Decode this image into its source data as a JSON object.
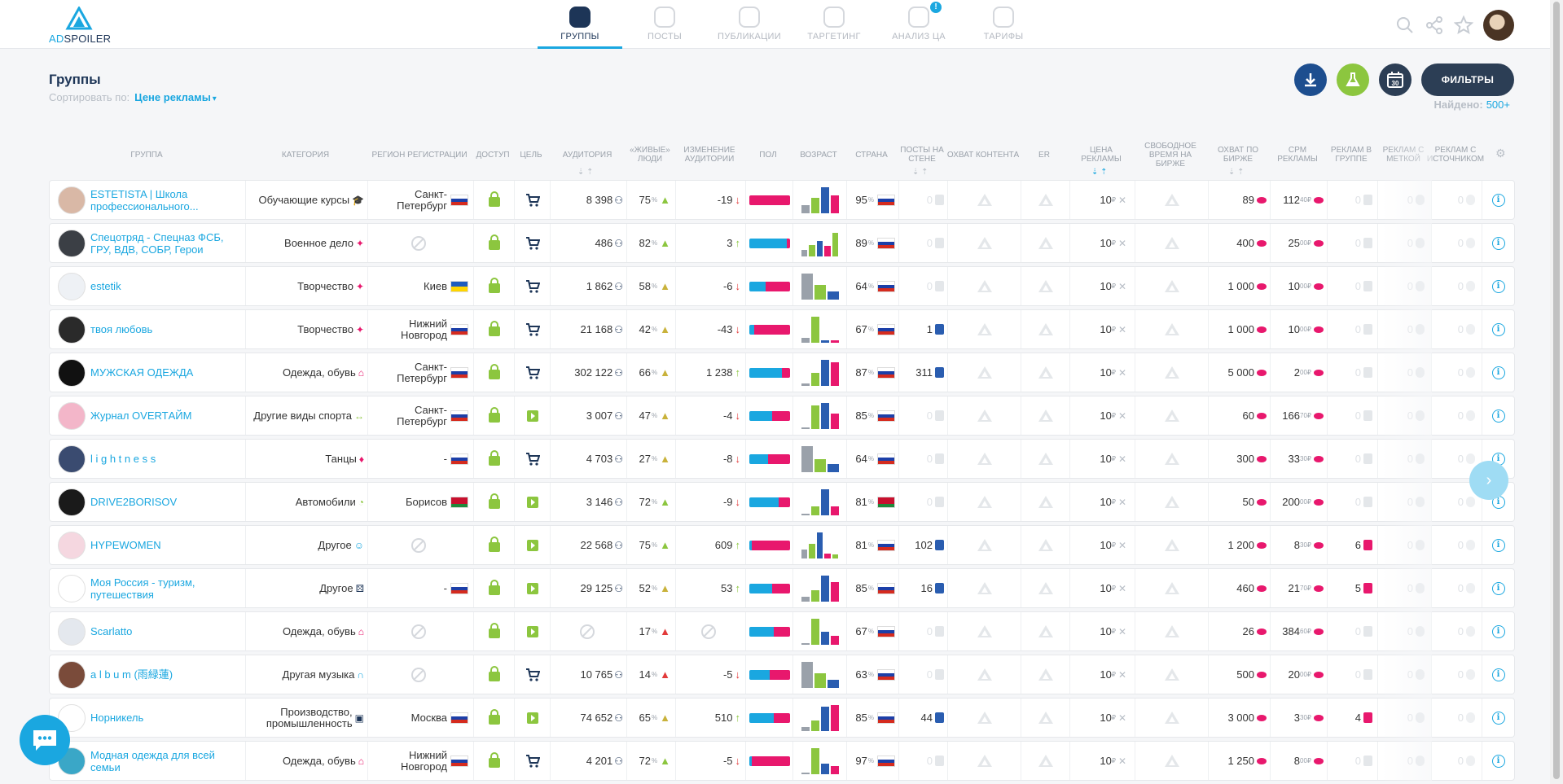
{
  "logo": {
    "ad": "AD",
    "spoiler": "SPOILER"
  },
  "nav": [
    {
      "label": "ГРУППЫ",
      "active": true,
      "icon": "groups-icon"
    },
    {
      "label": "ПОСТЫ",
      "active": false,
      "icon": "posts-icon"
    },
    {
      "label": "ПУБЛИКАЦИИ",
      "active": false,
      "icon": "share-icon"
    },
    {
      "label": "ТАРГЕТИНГ",
      "active": false,
      "icon": "target-icon"
    },
    {
      "label": "АНАЛИЗ ЦА",
      "active": false,
      "icon": "magic-wand-icon",
      "badge": "!"
    },
    {
      "label": "ТАРИФЫ",
      "active": false,
      "icon": "price-tag-icon"
    }
  ],
  "page": {
    "title": "Группы",
    "sort_label": "Сортировать по:",
    "sort_value": "Цене рекламы",
    "filters_label": "ФИЛЬТРЫ",
    "calendar_label": "30",
    "found_label": "Найдено:",
    "found_value": "500+"
  },
  "columns": {
    "group": "ГРУППА",
    "category": "КАТЕГОРИЯ",
    "region": "РЕГИОН РЕГИСТРАЦИИ",
    "access": "ДОСТУП",
    "goal": "ЦЕЛЬ",
    "audience": "АУДИТОРИЯ",
    "live": "«ЖИВЫЕ» ЛЮДИ",
    "change": "ИЗМЕНЕНИЕ АУДИТОРИИ",
    "sex": "ПОЛ",
    "age": "ВОЗРАСТ",
    "country": "СТРАНА",
    "posts": "ПОСТЫ НА СТЕНЕ",
    "reach": "ОХВАТ КОНТЕНТА",
    "er": "ER",
    "price": "ЦЕНА РЕКЛАМЫ",
    "free": "СВОБОДНОЕ ВРЕМЯ НА БИРЖЕ",
    "exch": "ОХВАТ ПО БИРЖЕ",
    "cpm": "CPM РЕКЛАМЫ",
    "ads_group": "РЕКЛАМ В ГРУППЕ",
    "ads_mark": "РЕКЛАМ С МЕТКОЙ",
    "ads_src": "РЕКЛАМ С ИСТОЧНИКОМ"
  },
  "colors": {
    "accent": "#1aa7e0",
    "navy": "#1d3557",
    "green": "#8cc63f",
    "pink": "#e8186d",
    "red": "#e23b3b"
  },
  "rows": [
    {
      "name": "ESTETISTA | Школа профессионального...",
      "cat": "Обучающие курсы",
      "cat_icon": "graduation-cap-icon",
      "region": "Санкт-Петербург",
      "flag": "ru",
      "goal": "cart",
      "aud": "8 398",
      "live": "75",
      "live_col": "#8cc63f",
      "chg": "-19",
      "dir": "down",
      "male": 0,
      "age": [
        0.3,
        0.6,
        1.0,
        0.7
      ],
      "cty": "95",
      "cflag": "ru",
      "posts": "0",
      "price": "10",
      "exch": "89",
      "cpm": "112",
      "cpm_dec": "40",
      "rg": "0",
      "rm": "0",
      "rs": "0",
      "av": "#d9b8a6"
    },
    {
      "name": "Спецотряд - Спецназ ФСБ, ГРУ, ВДВ, СОБР, Герои",
      "cat": "Военное дело",
      "cat_icon": "puzzle-icon",
      "region": "",
      "flag": "",
      "goal": "cart",
      "aud": "486",
      "live": "82",
      "live_col": "#8cc63f",
      "chg": "3",
      "dir": "up",
      "male": 0.92,
      "age": [
        0.25,
        0.45,
        0.6,
        0.4,
        0.9
      ],
      "cty": "89",
      "cflag": "ru",
      "posts": "0",
      "price": "10",
      "exch": "400",
      "cpm": "25",
      "cpm_dec": "00",
      "rg": "0",
      "rm": "0",
      "rs": "0",
      "av": "#3b3f45"
    },
    {
      "name": "estetik",
      "cat": "Творчество",
      "cat_icon": "puzzle-icon",
      "region": "Киев",
      "flag": "ua",
      "goal": "cart",
      "aud": "1 862",
      "live": "58",
      "live_col": "#c9b23b",
      "chg": "-6",
      "dir": "down",
      "male": 0.4,
      "age": [
        1.0,
        0.55,
        0.3
      ],
      "cty": "64",
      "cflag": "ru",
      "posts": "0",
      "price": "10",
      "exch": "1 000",
      "cpm": "10",
      "cpm_dec": "00",
      "rg": "0",
      "rm": "0",
      "rs": "0",
      "av": "#eef1f5"
    },
    {
      "name": "твоя любовь",
      "cat": "Творчество",
      "cat_icon": "puzzle-icon",
      "region": "Нижний Новгород",
      "flag": "ru",
      "goal": "cart",
      "aud": "21 168",
      "live": "42",
      "live_col": "#c9b23b",
      "chg": "-43",
      "dir": "down",
      "male": 0.12,
      "age": [
        0.2,
        1.0,
        0.08,
        0.08
      ],
      "cty": "67",
      "cflag": "ru",
      "posts": "1",
      "price": "10",
      "exch": "1 000",
      "cpm": "10",
      "cpm_dec": "00",
      "rg": "0",
      "rm": "0",
      "rs": "0",
      "av": "#2a2a2a"
    },
    {
      "name": "МУЖСКАЯ ОДЕЖДА",
      "cat": "Одежда, обувь",
      "cat_icon": "basket-icon",
      "region": "Санкт-Петербург",
      "flag": "ru",
      "goal": "cart",
      "aud": "302 122",
      "live": "66",
      "live_col": "#c9b23b",
      "chg": "1 238",
      "dir": "up",
      "male": 0.8,
      "age": [
        0.1,
        0.5,
        1.0,
        0.9
      ],
      "cty": "87",
      "cflag": "ru",
      "posts": "311",
      "price": "10",
      "exch": "5 000",
      "cpm": "2",
      "cpm_dec": "00",
      "rg": "0",
      "rm": "0",
      "rs": "0",
      "av": "#111111"
    },
    {
      "name": "Журнал OVERTАЙМ",
      "cat": "Другие виды спорта",
      "cat_icon": "arrows-icon",
      "region": "Санкт-Петербург",
      "flag": "ru",
      "goal": "video",
      "aud": "3 007",
      "live": "47",
      "live_col": "#c9b23b",
      "chg": "-4",
      "dir": "down",
      "male": 0.55,
      "age": [
        0.05,
        0.9,
        1.0,
        0.6
      ],
      "cty": "85",
      "cflag": "ru",
      "posts": "0",
      "price": "10",
      "exch": "60",
      "cpm": "166",
      "cpm_dec": "70",
      "rg": "0",
      "rm": "0",
      "rs": "0",
      "av": "#f3b6c9"
    },
    {
      "name": "l i g h t n e s s",
      "cat": "Танцы",
      "cat_icon": "dress-icon",
      "region": "-",
      "flag": "ru",
      "goal": "cart",
      "aud": "4 703",
      "live": "27",
      "live_col": "#c9b23b",
      "chg": "-8",
      "dir": "down",
      "male": 0.45,
      "age": [
        1.0,
        0.5,
        0.3
      ],
      "cty": "64",
      "cflag": "ru",
      "posts": "0",
      "price": "10",
      "exch": "300",
      "cpm": "33",
      "cpm_dec": "30",
      "rg": "0",
      "rm": "0",
      "rs": "0",
      "av": "#3a4b70"
    },
    {
      "name": "DRIVE2BORISOV",
      "cat": "Автомобили",
      "cat_icon": "speedometer-icon",
      "region": "Борисов",
      "flag": "by",
      "goal": "video",
      "aud": "3 146",
      "live": "72",
      "live_col": "#8cc63f",
      "chg": "-9",
      "dir": "down",
      "male": 0.72,
      "age": [
        0.05,
        0.35,
        1.0,
        0.35
      ],
      "cty": "81",
      "cflag": "by",
      "posts": "0",
      "price": "10",
      "exch": "50",
      "cpm": "200",
      "cpm_dec": "00",
      "rg": "0",
      "rm": "0",
      "rs": "0",
      "av": "#1a1a1a"
    },
    {
      "name": "HYPEWOMEN",
      "cat": "Другое",
      "cat_icon": "masks-icon",
      "region": "",
      "flag": "",
      "goal": "video",
      "aud": "22 568",
      "live": "75",
      "live_col": "#8cc63f",
      "chg": "609",
      "dir": "up",
      "male": 0.05,
      "age": [
        0.35,
        0.55,
        1.0,
        0.2,
        0.15
      ],
      "cty": "81",
      "cflag": "ru",
      "posts": "102",
      "price": "10",
      "exch": "1 200",
      "cpm": "8",
      "cpm_dec": "30",
      "rg": "6",
      "rm": "0",
      "rs": "0",
      "av": "#f5d7e0"
    },
    {
      "name": "Моя Россия - туризм, путешествия",
      "cat": "Другое",
      "cat_icon": "dice-icon",
      "region": "-",
      "flag": "ru",
      "goal": "video",
      "aud": "29 125",
      "live": "52",
      "live_col": "#c9b23b",
      "chg": "53",
      "dir": "up",
      "male": 0.55,
      "age": [
        0.2,
        0.45,
        1.0,
        0.75
      ],
      "cty": "85",
      "cflag": "ru",
      "posts": "16",
      "price": "10",
      "exch": "460",
      "cpm": "21",
      "cpm_dec": "70",
      "rg": "5",
      "rm": "0",
      "rs": "0",
      "av": "#ffffff"
    },
    {
      "name": "Scarlatto",
      "cat": "Одежда, обувь",
      "cat_icon": "basket-icon",
      "region": "",
      "flag": "",
      "goal": "video",
      "aud": "",
      "live": "17",
      "live_col": "#e23b3b",
      "chg": "",
      "dir": "",
      "male": 0.6,
      "age": [
        0.05,
        1.0,
        0.5,
        0.35
      ],
      "cty": "67",
      "cflag": "ru",
      "posts": "0",
      "price": "10",
      "exch": "26",
      "cpm": "384",
      "cpm_dec": "60",
      "rg": "0",
      "rm": "0",
      "rs": "0",
      "av": "#e4e8ee"
    },
    {
      "name": "a l b u m (雨緑蓮)",
      "cat": "Другая музыка",
      "cat_icon": "headphones-icon",
      "region": "",
      "flag": "",
      "goal": "cart",
      "aud": "10 765",
      "live": "14",
      "live_col": "#e23b3b",
      "chg": "-5",
      "dir": "down",
      "male": 0.5,
      "age": [
        1.0,
        0.55,
        0.3
      ],
      "cty": "63",
      "cflag": "ru",
      "posts": "0",
      "price": "10",
      "exch": "500",
      "cpm": "20",
      "cpm_dec": "00",
      "rg": "0",
      "rm": "0",
      "rs": "0",
      "av": "#7a4b3a"
    },
    {
      "name": "Норникель",
      "cat": "Производство, промышленность",
      "cat_icon": "briefcase-icon",
      "region": "Москва",
      "flag": "ru",
      "goal": "video",
      "aud": "74 652",
      "live": "65",
      "live_col": "#c9b23b",
      "chg": "510",
      "dir": "up",
      "male": 0.6,
      "age": [
        0.15,
        0.4,
        0.95,
        1.0
      ],
      "cty": "85",
      "cflag": "ru",
      "posts": "44",
      "price": "10",
      "exch": "3 000",
      "cpm": "3",
      "cpm_dec": "30",
      "rg": "4",
      "rm": "0",
      "rs": "0",
      "av": "#ffffff"
    },
    {
      "name": "Модная одежда для всей семьи",
      "cat": "Одежда, обувь",
      "cat_icon": "basket-icon",
      "region": "Нижний Новгород",
      "flag": "ru",
      "goal": "cart",
      "aud": "4 201",
      "live": "72",
      "live_col": "#8cc63f",
      "chg": "-5",
      "dir": "down",
      "male": 0.05,
      "age": [
        0.05,
        1.0,
        0.4,
        0.3
      ],
      "cty": "97",
      "cflag": "ru",
      "posts": "0",
      "price": "10",
      "exch": "1 250",
      "cpm": "8",
      "cpm_dec": "00",
      "rg": "0",
      "rm": "0",
      "rs": "0",
      "av": "#3aa7c7"
    }
  ]
}
